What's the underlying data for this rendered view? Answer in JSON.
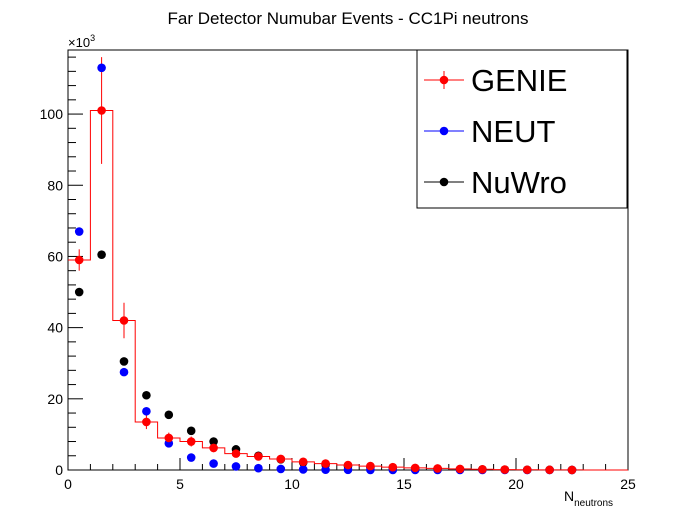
{
  "chart_data": {
    "type": "scatter",
    "title": "Far Detector Numubar Events - CC1Pi neutrons",
    "xlabel": "N",
    "xlabel_sub": "neutrons",
    "ylabel": "",
    "y_multiplier_base": "×10",
    "y_multiplier_exp": "3",
    "xlim": [
      0,
      25
    ],
    "ylim": [
      0,
      118
    ],
    "x_ticks": [
      0,
      5,
      10,
      15,
      20,
      25
    ],
    "x_tick_labels": [
      "0",
      "5",
      "10",
      "15",
      "20",
      "25"
    ],
    "y_ticks": [
      0,
      20,
      40,
      60,
      80,
      100
    ],
    "y_tick_labels": [
      "0",
      "20",
      "40",
      "60",
      "80",
      "100"
    ],
    "grid": false,
    "legend_position": "top-right",
    "x": [
      0.5,
      1.5,
      2.5,
      3.5,
      4.5,
      5.5,
      6.5,
      7.5,
      8.5,
      9.5,
      10.5,
      11.5,
      12.5,
      13.5,
      14.5,
      15.5,
      16.5,
      17.5,
      18.5,
      19.5,
      20.5,
      21.5,
      22.5
    ],
    "series": [
      {
        "name": "GENIE",
        "color": "#ff0000",
        "histogram_line": true,
        "values": [
          59,
          101,
          42,
          13.5,
          9,
          8,
          6.2,
          4.6,
          3.8,
          3.1,
          2.3,
          1.8,
          1.4,
          1.1,
          0.8,
          0.6,
          0.45,
          0.3,
          0.2,
          0.12,
          0.07,
          0.04,
          0.02
        ],
        "errors": [
          3,
          15,
          5,
          2,
          1.5,
          1.4,
          1.2,
          1.1,
          1.0,
          0.9,
          0.8,
          0.7,
          0.6,
          0.5,
          0.4,
          0.35,
          0.3,
          0.25,
          0.2,
          0.15,
          0.1,
          0.08,
          0.05
        ]
      },
      {
        "name": "NEUT",
        "color": "#0000ff",
        "histogram_line": false,
        "values": [
          67,
          113,
          27.5,
          16.5,
          7.5,
          3.5,
          1.8,
          1.0,
          0.5,
          0.3,
          0.15,
          0.08,
          0.04,
          0.02,
          0.01,
          0,
          0,
          0,
          0,
          0,
          0,
          0,
          0
        ]
      },
      {
        "name": "NuWro",
        "color": "#000000",
        "histogram_line": false,
        "values": [
          50,
          60.5,
          30.5,
          21,
          15.5,
          11,
          8,
          5.8,
          4,
          3,
          2.1,
          1.5,
          1.1,
          0.8,
          0.55,
          0.4,
          0.3,
          0.2,
          0.15,
          0.1,
          0.06,
          0.04,
          0.02
        ]
      }
    ]
  }
}
